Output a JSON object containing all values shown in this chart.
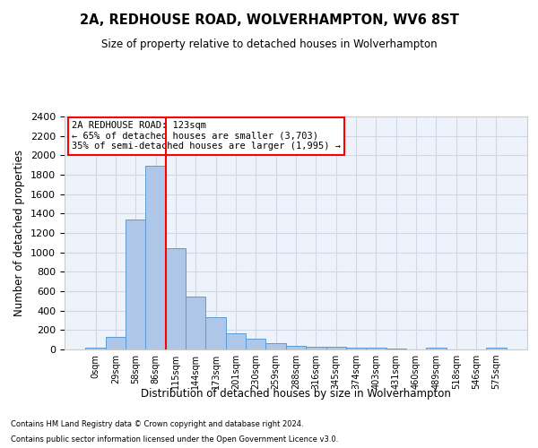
{
  "title": "2A, REDHOUSE ROAD, WOLVERHAMPTON, WV6 8ST",
  "subtitle": "Size of property relative to detached houses in Wolverhampton",
  "xlabel": "Distribution of detached houses by size in Wolverhampton",
  "ylabel": "Number of detached properties",
  "footer1": "Contains HM Land Registry data © Crown copyright and database right 2024.",
  "footer2": "Contains public sector information licensed under the Open Government Licence v3.0.",
  "bin_labels": [
    "0sqm",
    "29sqm",
    "58sqm",
    "86sqm",
    "115sqm",
    "144sqm",
    "173sqm",
    "201sqm",
    "230sqm",
    "259sqm",
    "288sqm",
    "316sqm",
    "345sqm",
    "374sqm",
    "403sqm",
    "431sqm",
    "460sqm",
    "489sqm",
    "518sqm",
    "546sqm",
    "575sqm"
  ],
  "bar_values": [
    15,
    125,
    1340,
    1890,
    1045,
    545,
    335,
    168,
    110,
    65,
    40,
    30,
    25,
    20,
    15,
    5,
    0,
    15,
    0,
    0,
    15
  ],
  "bar_color": "#aec6e8",
  "bar_edge_color": "#5b9bd5",
  "grid_color": "#d0d8e8",
  "bg_color": "#eef2fa",
  "red_line_x": 4,
  "annotation_title": "2A REDHOUSE ROAD: 123sqm",
  "annotation_line1": "← 65% of detached houses are smaller (3,703)",
  "annotation_line2": "35% of semi-detached houses are larger (1,995) →",
  "ylim": [
    0,
    2400
  ],
  "yticks": [
    0,
    200,
    400,
    600,
    800,
    1000,
    1200,
    1400,
    1600,
    1800,
    2000,
    2200,
    2400
  ]
}
